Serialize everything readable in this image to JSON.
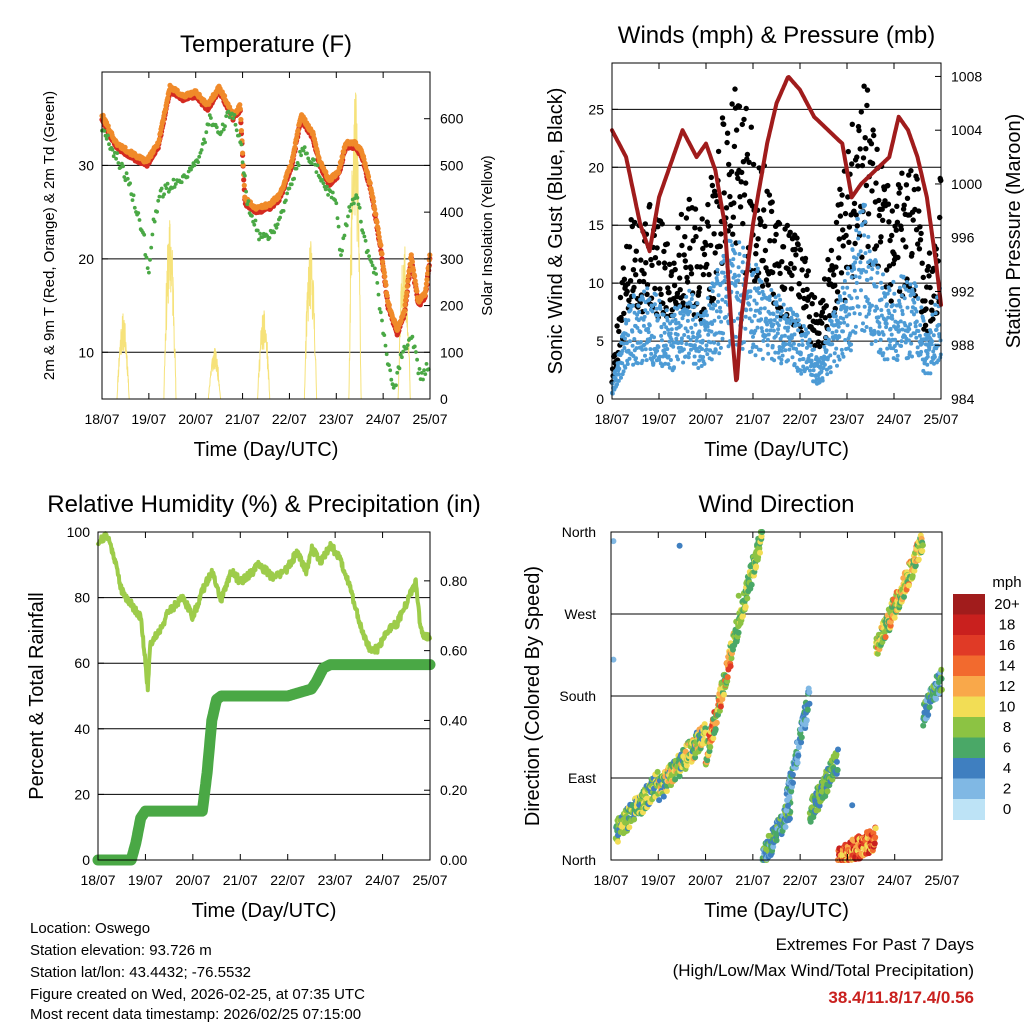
{
  "chart_data": [
    {
      "type": "line",
      "id": "temperature",
      "title": "Temperature (F)",
      "xlabel": "Time (Day/UTC)",
      "ylabel": "2m & 9m T (Red, Orange) & 2m Td (Green)",
      "y2label": "Solar Insolation (Yellow)",
      "x_ticks": [
        "18/07",
        "19/07",
        "20/07",
        "21/07",
        "22/07",
        "23/07",
        "24/07",
        "25/07"
      ],
      "x_range": [
        0,
        7
      ],
      "ylim": [
        5,
        40
      ],
      "y_ticks": [
        10,
        20,
        30
      ],
      "y2lim": [
        0,
        700
      ],
      "y2_ticks": [
        0,
        100,
        200,
        300,
        400,
        500,
        600
      ],
      "series": [
        {
          "name": "2m T",
          "color": "#d42a20",
          "x": [
            0,
            0.3,
            0.6,
            0.95,
            1.2,
            1.45,
            1.6,
            1.75,
            2.0,
            2.25,
            2.5,
            2.8,
            2.95,
            3.05,
            3.3,
            3.6,
            3.8,
            4.05,
            4.25,
            4.5,
            4.65,
            4.85,
            5.05,
            5.2,
            5.4,
            5.55,
            5.75,
            5.95,
            6.1,
            6.3,
            6.45,
            6.6,
            6.75,
            6.9,
            7.0
          ],
          "y": [
            35,
            32,
            31,
            30,
            32,
            38,
            37.5,
            37,
            37.5,
            36,
            38,
            35,
            36,
            26,
            25,
            25.5,
            26.5,
            30,
            35,
            33,
            30,
            28,
            29,
            32,
            32,
            31,
            27,
            21,
            15,
            12,
            14,
            20,
            15,
            16,
            20
          ]
        },
        {
          "name": "9m T",
          "color": "#f08a2a",
          "x": [
            0,
            0.3,
            0.6,
            0.95,
            1.2,
            1.45,
            1.6,
            1.75,
            2.0,
            2.25,
            2.5,
            2.8,
            2.95,
            3.05,
            3.3,
            3.6,
            3.8,
            4.05,
            4.25,
            4.5,
            4.65,
            4.85,
            5.05,
            5.2,
            5.4,
            5.55,
            5.75,
            5.95,
            6.1,
            6.3,
            6.45,
            6.6,
            6.75,
            6.9,
            7.0
          ],
          "y": [
            35.4,
            32.4,
            31.4,
            30.4,
            32.4,
            38.4,
            37.9,
            37.4,
            37.9,
            36.4,
            38.4,
            35.4,
            36.4,
            26.4,
            25.4,
            25.9,
            26.9,
            30.4,
            35.4,
            33.4,
            30.4,
            28.4,
            29.4,
            32.4,
            32.4,
            31.4,
            27.4,
            21.4,
            15.4,
            12.4,
            14.4,
            20.4,
            15.4,
            16.4,
            20.4
          ]
        },
        {
          "name": "2m Td",
          "color": "#4aa845",
          "x": [
            0,
            0.3,
            0.5,
            0.7,
            0.9,
            1.0,
            1.1,
            1.25,
            1.5,
            1.8,
            2.1,
            2.3,
            2.5,
            2.75,
            2.95,
            3.1,
            3.4,
            3.65,
            3.9,
            4.1,
            4.3,
            4.55,
            4.75,
            5.0,
            5.1,
            5.25,
            5.45,
            5.6,
            5.85,
            6.0,
            6.1,
            6.25,
            6.4,
            6.6,
            6.8,
            7.0
          ],
          "y": [
            34,
            31,
            29,
            26,
            22,
            18,
            24,
            27,
            28,
            29,
            31,
            35,
            33,
            36,
            33,
            26,
            22,
            23,
            26,
            29,
            32,
            30,
            28,
            26,
            20,
            25,
            27,
            22,
            18,
            12,
            9,
            6,
            10,
            12,
            7,
            9
          ]
        }
      ],
      "solar_peaks": [
        {
          "x": 0.45,
          "value": 185
        },
        {
          "x": 1.45,
          "value": 390
        },
        {
          "x": 2.4,
          "value": 110
        },
        {
          "x": 3.45,
          "value": 190
        },
        {
          "x": 4.45,
          "value": 340
        },
        {
          "x": 5.4,
          "value": 680
        },
        {
          "x": 6.45,
          "value": 330
        }
      ],
      "solar_color": "#f6e27a"
    },
    {
      "type": "scatter",
      "id": "winds",
      "title": "Winds (mph) & Pressure (mb)",
      "xlabel": "Time (Day/UTC)",
      "ylabel": "Sonic Wind & Gust (Blue, Black)",
      "y2label": "Station Pressure (Maroon)",
      "x_ticks": [
        "18/07",
        "19/07",
        "20/07",
        "21/07",
        "22/07",
        "23/07",
        "24/07",
        "25/07"
      ],
      "x_range": [
        0,
        7
      ],
      "ylim": [
        0,
        29
      ],
      "y_ticks": [
        0,
        5,
        10,
        15,
        20,
        25
      ],
      "y2lim": [
        984,
        1009
      ],
      "y2_ticks": [
        984,
        988,
        992,
        996,
        1000,
        1004,
        1008
      ],
      "wind_envelope": {
        "x": [
          0,
          0.2,
          0.4,
          0.7,
          1.0,
          1.3,
          1.6,
          1.9,
          2.2,
          2.5,
          2.8,
          3.0,
          3.3,
          3.6,
          3.9,
          4.2,
          4.4,
          4.7,
          5.0,
          5.2,
          5.4,
          5.6,
          5.9,
          6.2,
          6.5,
          6.7,
          6.9,
          7.0
        ],
        "sustained": [
          1,
          5,
          8,
          9,
          8,
          7,
          9,
          7,
          10,
          13,
          12,
          11,
          9,
          8,
          7,
          5,
          3,
          7,
          10,
          14,
          16,
          11,
          9,
          10,
          9,
          5,
          8,
          9
        ],
        "gust": [
          2,
          8,
          12,
          14,
          12,
          11,
          14,
          12,
          16,
          22,
          20,
          18,
          15,
          12,
          11,
          9,
          6,
          12,
          16,
          21,
          23,
          17,
          14,
          16,
          15,
          9,
          13,
          15
        ]
      },
      "wind_colors": {
        "sustained": "#4d9bd5",
        "gust": "#000000"
      },
      "pressure": {
        "name": "Station Pressure",
        "color": "#a01c1c",
        "x": [
          0,
          0.3,
          0.6,
          0.8,
          1.0,
          1.3,
          1.5,
          1.8,
          2.0,
          2.2,
          2.4,
          2.55,
          2.65,
          2.75,
          3.0,
          3.3,
          3.5,
          3.75,
          4.0,
          4.3,
          4.6,
          4.9,
          5.1,
          5.3,
          5.6,
          5.9,
          6.1,
          6.3,
          6.5,
          6.7,
          6.9,
          7.0
        ],
        "y": [
          1004,
          1002,
          997,
          995,
          999,
          1002,
          1004,
          1002,
          1003,
          1001,
          997,
          989,
          985,
          990,
          997,
          1003,
          1006,
          1008,
          1007,
          1005,
          1004,
          1003,
          999,
          1000,
          1001,
          1002,
          1005,
          1004,
          1002,
          999,
          994,
          991
        ]
      }
    },
    {
      "type": "line",
      "id": "humidity",
      "title": "Relative Humidity (%) & Precipitation (in)",
      "xlabel": "Time (Day/UTC)",
      "ylabel": "Percent & Total Rainfall",
      "x_ticks": [
        "18/07",
        "19/07",
        "20/07",
        "21/07",
        "22/07",
        "23/07",
        "24/07",
        "25/07"
      ],
      "x_range": [
        0,
        7
      ],
      "ylim": [
        0,
        100
      ],
      "y_ticks": [
        0,
        20,
        40,
        60,
        80,
        100
      ],
      "y2lim": [
        0,
        0.94
      ],
      "y2_ticks": [
        "0.00",
        "0.20",
        "0.40",
        "0.60",
        "0.80"
      ],
      "series": [
        {
          "name": "Relative Humidity",
          "color": "#9dcc4a",
          "x": [
            0,
            0.2,
            0.35,
            0.5,
            0.7,
            0.9,
            1.0,
            1.05,
            1.1,
            1.3,
            1.5,
            1.8,
            2.0,
            2.2,
            2.4,
            2.6,
            2.8,
            3.0,
            3.2,
            3.4,
            3.7,
            4.0,
            4.2,
            4.4,
            4.5,
            4.7,
            4.9,
            5.1,
            5.3,
            5.5,
            5.7,
            5.9,
            6.1,
            6.3,
            6.5,
            6.7,
            6.8,
            6.9,
            7.0
          ],
          "y": [
            97,
            99,
            92,
            82,
            78,
            74,
            60,
            52,
            66,
            70,
            76,
            80,
            74,
            82,
            88,
            79,
            88,
            85,
            87,
            90,
            86,
            89,
            94,
            88,
            95,
            91,
            96,
            92,
            84,
            73,
            65,
            64,
            70,
            72,
            78,
            85,
            70,
            68,
            68
          ]
        },
        {
          "name": "Total Rainfall",
          "color": "#4aa845",
          "axis": "y2",
          "x": [
            0,
            0.7,
            0.8,
            0.9,
            1.0,
            1.5,
            2.2,
            2.3,
            2.4,
            2.5,
            2.6,
            3.0,
            3.5,
            4.0,
            4.5,
            4.6,
            4.75,
            4.9,
            5.5,
            6.0,
            7.0
          ],
          "y": [
            0,
            0,
            0.05,
            0.12,
            0.14,
            0.14,
            0.14,
            0.25,
            0.4,
            0.46,
            0.47,
            0.47,
            0.47,
            0.47,
            0.49,
            0.51,
            0.55,
            0.56,
            0.56,
            0.56,
            0.56
          ]
        }
      ]
    },
    {
      "type": "scatter",
      "id": "direction",
      "title": "Wind Direction",
      "xlabel": "Time (Day/UTC)",
      "ylabel": "Direction (Colored By Speed)",
      "x_ticks": [
        "18/07",
        "19/07",
        "20/07",
        "21/07",
        "22/07",
        "23/07",
        "24/07",
        "25/07"
      ],
      "x_range": [
        0,
        7
      ],
      "ylim": [
        0,
        360
      ],
      "y_ticks": [
        "North",
        "East",
        "South",
        "West",
        "North"
      ],
      "y_tick_values": [
        0,
        90,
        180,
        270,
        360
      ],
      "clusters": [
        {
          "x": [
            0.1,
            1.0
          ],
          "y": [
            30,
            85
          ],
          "speeds": [
            3,
            11
          ]
        },
        {
          "x": [
            1.0,
            2.0
          ],
          "y": [
            75,
            140
          ],
          "speeds": [
            4,
            12
          ]
        },
        {
          "x": [
            2.0,
            2.6
          ],
          "y": [
            110,
            240
          ],
          "speeds": [
            5,
            16
          ]
        },
        {
          "x": [
            2.6,
            3.2
          ],
          "y": [
            240,
            360
          ],
          "speeds": [
            5,
            10
          ]
        },
        {
          "x": [
            3.2,
            3.8
          ],
          "y": [
            0,
            60
          ],
          "speeds": [
            2,
            9
          ]
        },
        {
          "x": [
            3.7,
            4.2
          ],
          "y": [
            60,
            180
          ],
          "speeds": [
            1,
            7
          ]
        },
        {
          "x": [
            4.2,
            4.8
          ],
          "y": [
            50,
            110
          ],
          "speeds": [
            4,
            9
          ]
        },
        {
          "x": [
            4.8,
            5.6
          ],
          "y": [
            0,
            25
          ],
          "speeds": [
            9,
            19
          ]
        },
        {
          "x": [
            5.6,
            6.6
          ],
          "y": [
            230,
            350
          ],
          "speeds": [
            5,
            14
          ]
        },
        {
          "x": [
            6.6,
            7.0
          ],
          "y": [
            160,
            200
          ],
          "speeds": [
            2,
            8
          ]
        }
      ],
      "legend": {
        "title": "mph",
        "labels": [
          "20+",
          "18",
          "16",
          "14",
          "12",
          "10",
          "8",
          "6",
          "4",
          "2",
          "0"
        ],
        "colors": [
          "#a11c1c",
          "#c9201e",
          "#e03a26",
          "#f26a2e",
          "#f9a84a",
          "#f2dd55",
          "#8cc343",
          "#4aa867",
          "#3f7fc0",
          "#80b8e4",
          "#bde3f6"
        ]
      }
    }
  ],
  "info": {
    "location": "Location: Oswego",
    "elevation": "Station elevation: 93.726 m",
    "latlon": "Station lat/lon: 43.4432; -76.5532",
    "created": "Figure created on Wed, 2026-02-25, at 07:35 UTC",
    "recent": "Most recent data timestamp: 2026/02/25 07:15:00"
  },
  "extremes": {
    "title": "Extremes For Past 7 Days",
    "subtitle": "(High/Low/Max Wind/Total Precipitation)",
    "values": "38.4/11.8/17.4/0.56",
    "color": "#c9201e"
  }
}
